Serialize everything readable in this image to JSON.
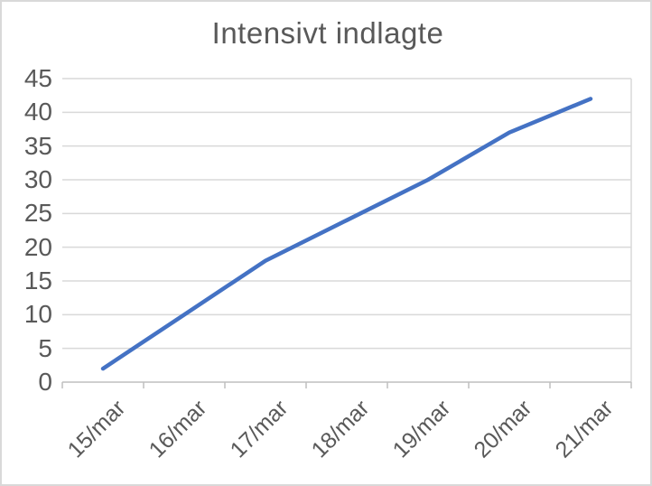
{
  "title": "Intensivt indlagte",
  "colors": {
    "line": "#4472C4",
    "gridline": "#D9D9D9",
    "axis": "#BFBFBF",
    "text": "#595959",
    "background": "#FFFFFF",
    "frame_border": "#D9D9D9"
  },
  "chart_data": {
    "type": "line",
    "title": "Intensivt indlagte",
    "categories": [
      "15/mar",
      "16/mar",
      "17/mar",
      "18/mar",
      "19/mar",
      "20/mar",
      "21/mar"
    ],
    "series": [
      {
        "name": "Intensivt indlagte",
        "values": [
          2,
          10,
          18,
          24,
          30,
          37,
          42
        ]
      }
    ],
    "xlabel": "",
    "ylabel": "",
    "ylim": [
      0,
      45
    ],
    "yticks": [
      0,
      5,
      10,
      15,
      20,
      25,
      30,
      35,
      40,
      45
    ],
    "grid": true,
    "legend_position": "none"
  }
}
